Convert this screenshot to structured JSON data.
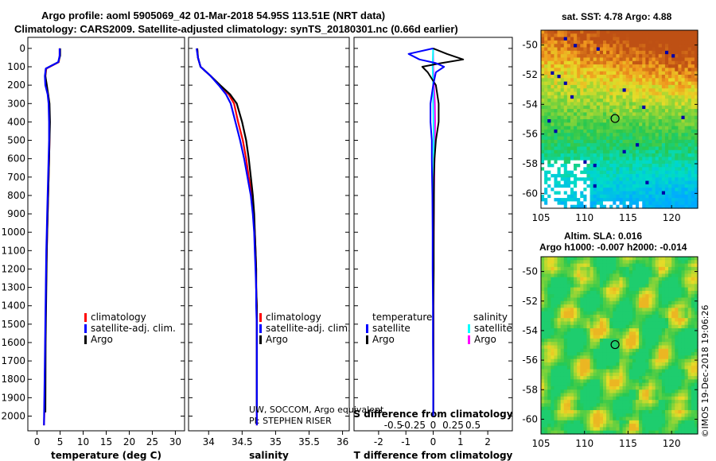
{
  "titles": {
    "line1": "Argo profile: aoml 5905069_42 01-Mar-2018 54.95S 113.51E (NRT data)",
    "line2": "Climatology: CARS2009. Satellite-adjusted climatology: synTS_20180301.nc (0.66d earlier)"
  },
  "map_titles": {
    "sst": "sat. SST: 4.78 Argo: 4.88",
    "sla": "Altim. SLA: 0.016",
    "heights": "Argo h1000: -0.007 h2000: -0.014"
  },
  "watermark": "©IMOS 19-Dec-2018 19:06:26",
  "credits": [
    "UW, SOCCOM, Argo equivalent",
    "PI: STEPHEN RISER"
  ],
  "colors": {
    "climatology": "#ff0000",
    "satellite": "#0000ff",
    "argo": "#000000",
    "satellite_s": "#00ffff",
    "argo_s": "#ff00ff"
  },
  "chart_data": [
    {
      "type": "line",
      "title": "",
      "xlabel": "temperature (deg C)",
      "ylabel": "",
      "xlim": [
        -2,
        32
      ],
      "ylim": [
        2080,
        -60
      ],
      "x_ticks": [
        0,
        5,
        10,
        15,
        20,
        25,
        30
      ],
      "y_ticks": [
        0,
        100,
        200,
        300,
        400,
        500,
        600,
        700,
        800,
        900,
        1000,
        1100,
        1200,
        1300,
        1400,
        1500,
        1600,
        1700,
        1800,
        1900,
        2000
      ],
      "legend": [
        "climatology",
        "satellite-adj. clim.",
        "Argo"
      ],
      "series": [
        {
          "name": "climatology",
          "x": [
            4.9,
            4.9,
            4.7,
            2.0,
            1.8,
            1.9,
            2.4,
            2.6,
            2.7,
            2.7,
            2.6,
            2.5,
            2.4,
            2.3,
            2.2,
            2.1,
            2.0,
            1.95,
            1.9,
            1.85,
            1.8,
            1.7,
            1.6,
            1.5
          ],
          "y": [
            0,
            40,
            75,
            110,
            150,
            200,
            250,
            300,
            400,
            500,
            600,
            700,
            800,
            900,
            1000,
            1100,
            1200,
            1300,
            1400,
            1500,
            1600,
            1800,
            1950,
            2050
          ]
        },
        {
          "name": "satellite-adj. clim.",
          "x": [
            4.9,
            4.9,
            4.6,
            1.9,
            1.7,
            1.8,
            2.3,
            2.5,
            2.6,
            2.6,
            2.5,
            2.4,
            2.3,
            2.2,
            2.1,
            2.0,
            1.95,
            1.9,
            1.85,
            1.8,
            1.75,
            1.65,
            1.55,
            1.5
          ],
          "y": [
            0,
            40,
            75,
            110,
            150,
            200,
            250,
            300,
            400,
            500,
            600,
            700,
            800,
            900,
            1000,
            1100,
            1200,
            1300,
            1400,
            1500,
            1600,
            1800,
            1950,
            2050
          ]
        },
        {
          "name": "Argo",
          "x": [
            5.0,
            5.0,
            4.6,
            1.9,
            1.8,
            2.1,
            2.4,
            2.7,
            2.8,
            2.7,
            2.6,
            2.5,
            2.4,
            2.3,
            2.2,
            2.1,
            2.05,
            2.0,
            1.95,
            1.9,
            1.85,
            1.8
          ],
          "y": [
            0,
            40,
            75,
            110,
            150,
            200,
            250,
            300,
            400,
            500,
            600,
            700,
            800,
            900,
            1000,
            1100,
            1200,
            1300,
            1400,
            1500,
            1600,
            1980
          ]
        }
      ]
    },
    {
      "type": "line",
      "title": "",
      "xlabel": "salinity",
      "ylabel": "",
      "xlim": [
        33.7,
        36.1
      ],
      "ylim": [
        2080,
        -60
      ],
      "x_ticks": [
        34,
        34.5,
        35,
        35.5,
        36
      ],
      "legend": [
        "climatology",
        "satellite-adj. clim.",
        "Argo"
      ],
      "series": [
        {
          "name": "climatology",
          "x": [
            33.83,
            33.84,
            33.88,
            34.03,
            34.16,
            34.3,
            34.38,
            34.44,
            34.51,
            34.56,
            34.6,
            34.65,
            34.67,
            34.69,
            34.7,
            34.71,
            34.71,
            34.72,
            34.72,
            34.72,
            34.72,
            34.72,
            34.72
          ],
          "y": [
            0,
            50,
            100,
            150,
            200,
            250,
            300,
            400,
            500,
            600,
            700,
            800,
            900,
            1000,
            1100,
            1200,
            1300,
            1400,
            1500,
            1600,
            1800,
            1950,
            2050
          ]
        },
        {
          "name": "satellite-adj. clim.",
          "x": [
            33.82,
            33.84,
            33.88,
            34.03,
            34.15,
            34.26,
            34.33,
            34.4,
            34.47,
            34.53,
            34.58,
            34.63,
            34.66,
            34.68,
            34.69,
            34.7,
            34.71,
            34.71,
            34.72,
            34.72,
            34.72,
            34.72,
            34.72
          ],
          "y": [
            0,
            50,
            100,
            150,
            200,
            250,
            300,
            400,
            500,
            600,
            700,
            800,
            900,
            1000,
            1100,
            1200,
            1300,
            1400,
            1500,
            1600,
            1800,
            1950,
            2050
          ]
        },
        {
          "name": "Argo",
          "x": [
            33.83,
            33.84,
            33.88,
            34.03,
            34.17,
            34.32,
            34.42,
            34.5,
            34.56,
            34.6,
            34.63,
            34.66,
            34.68,
            34.69,
            34.7,
            34.71,
            34.71,
            34.72,
            34.72,
            34.72,
            34.72
          ],
          "y": [
            0,
            50,
            100,
            150,
            200,
            250,
            300,
            400,
            500,
            600,
            700,
            800,
            900,
            1000,
            1100,
            1200,
            1300,
            1400,
            1500,
            1600,
            1980
          ]
        }
      ]
    },
    {
      "type": "line",
      "title": "",
      "xlabel": "T difference from climatology",
      "top_xlabel": "S difference from climatology",
      "ylabel": "",
      "xlim": [
        -2.9,
        2.9
      ],
      "ylim": [
        2080,
        -60
      ],
      "x_ticks": [
        -2,
        -1,
        0,
        1,
        2
      ],
      "top_x_ticks": [
        "-0.5",
        "-0.25",
        "0",
        "0.25",
        "0.5"
      ],
      "legend_headers": [
        "temperature",
        "salinity"
      ],
      "legend_left": [
        "satellite",
        "Argo"
      ],
      "legend_right": [
        "satellite",
        "Argo"
      ],
      "series": [
        {
          "name": "T satellite",
          "x": [
            0,
            -0.9,
            -0.5,
            0.1,
            0.4,
            0.1,
            0.0,
            -0.1,
            -0.1,
            -0.05,
            -0.05,
            -0.04,
            -0.03,
            -0.02,
            -0.02,
            -0.01,
            -0.01,
            0.0,
            0.0
          ],
          "y": [
            0,
            30,
            60,
            80,
            100,
            130,
            200,
            300,
            400,
            500,
            600,
            700,
            800,
            1000,
            1200,
            1400,
            1600,
            1800,
            2000
          ]
        },
        {
          "name": "T Argo",
          "x": [
            0,
            0.5,
            1.1,
            0.3,
            -0.4,
            -0.2,
            0.1,
            0.2,
            0.2,
            0.1,
            0.05,
            0.03,
            0.03,
            0.02,
            0.02,
            0.01,
            0.01,
            0.01
          ],
          "y": [
            0,
            30,
            60,
            80,
            100,
            130,
            200,
            300,
            400,
            500,
            600,
            700,
            800,
            1000,
            1200,
            1400,
            1600,
            1980
          ]
        },
        {
          "name": "S satellite",
          "x": [
            0,
            -0.02,
            0.0,
            0.0,
            0.01,
            0.02,
            0.02,
            0.02,
            0.01,
            0.0,
            0.0,
            0.0
          ],
          "y": [
            0,
            100,
            200,
            300,
            400,
            500,
            600,
            700,
            800,
            1000,
            1500,
            2000
          ]
        },
        {
          "name": "S Argo",
          "x": [
            0,
            0.0,
            0.03,
            0.06,
            0.07,
            0.06,
            0.05,
            0.04,
            0.03,
            0.02,
            0.01,
            0.01,
            0.0
          ],
          "y": [
            0,
            100,
            200,
            300,
            400,
            500,
            600,
            700,
            800,
            1000,
            1200,
            1500,
            1980
          ]
        }
      ]
    },
    {
      "type": "heatmap",
      "title": "sat. SST: 4.78 Argo: 4.88",
      "xlim": [
        105,
        123
      ],
      "ylim": [
        -61,
        -49
      ],
      "x_ticks": [
        105,
        110,
        115,
        120
      ],
      "y_ticks": [
        -50,
        -52,
        -54,
        -56,
        -58,
        -60
      ],
      "marker": {
        "lon": 113.51,
        "lat": -54.95
      }
    },
    {
      "type": "heatmap",
      "title": "Altim. SLA: 0.016",
      "xlim": [
        105,
        123
      ],
      "ylim": [
        -61,
        -49
      ],
      "x_ticks": [
        105,
        110,
        115,
        120
      ],
      "y_ticks": [
        -50,
        -52,
        -54,
        -56,
        -58,
        -60
      ],
      "marker": {
        "lon": 113.51,
        "lat": -54.95
      }
    }
  ]
}
